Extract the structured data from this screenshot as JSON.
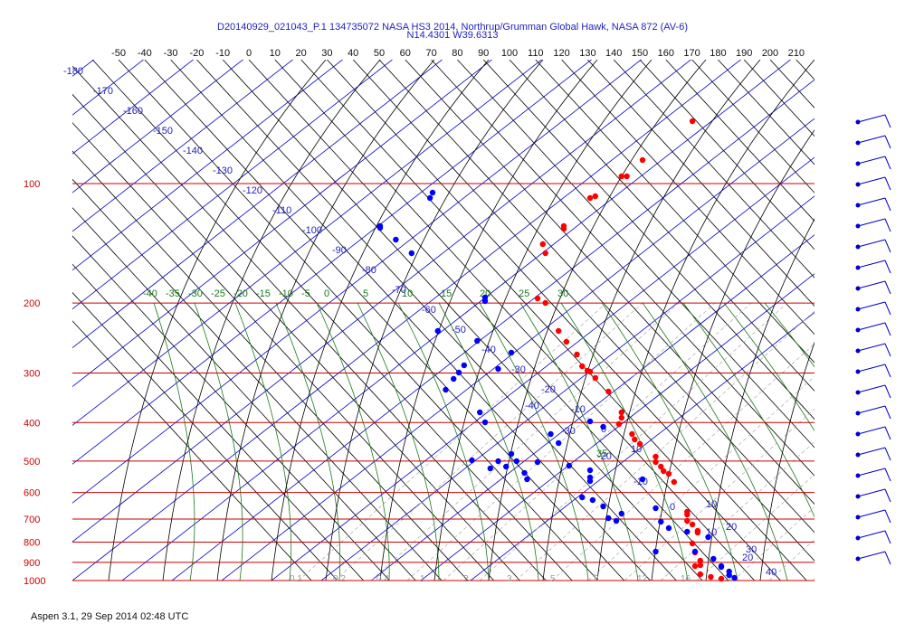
{
  "header": {
    "title_line1": "D20140929_021043_P.1 134735072 NASA HS3 2014, Northrup/Grumman Global Hawk, NASA 872 (AV-6)",
    "title_line2": "N14.4301 W39.6313"
  },
  "footer": {
    "text": "Aspen 3.1, 29 Sep 2014 02:48 UTC"
  },
  "colors": {
    "temperature": "#ff0000",
    "dewpoint": "#0000ff",
    "isobar": "#cc0000",
    "potential_temp": "#0000cc",
    "moist_adiabat": "#1a7a1a",
    "isotherm": "#000000",
    "mixing_ratio": "#aaaaaa",
    "wind_barb": "#0000cc"
  },
  "chart_data": {
    "type": "scatter",
    "title": "D20140929_021043_P.1 134735072 NASA HS3 2014, Northrup/Grumman Global Hawk, NASA 872 (AV-6)",
    "subtitle": "N14.4301 W39.6313",
    "pressure_ticks": [
      "100",
      "200",
      "300",
      "400",
      "500",
      "600",
      "700",
      "800",
      "900",
      "1000"
    ],
    "top_temperature_ticks": [
      "-50",
      "-40",
      "-30",
      "-20",
      "-10",
      "0",
      "10",
      "20",
      "30",
      "40",
      "50",
      "60",
      "70",
      "80",
      "90",
      "100",
      "110",
      "120",
      "130",
      "140",
      "150",
      "160",
      "170",
      "180",
      "190",
      "200",
      "210"
    ],
    "skewed_labels": [
      "-40",
      "-30",
      "-20",
      "-10",
      "0",
      "10",
      "20"
    ],
    "skewed_labels_lower": [
      "10",
      "20",
      "30",
      "40"
    ],
    "moist_adiabat_labels": [
      "-40",
      "-35",
      "-30",
      "-25",
      "-20",
      "-15",
      "-10",
      "-5",
      "0",
      "5",
      "10",
      "15",
      "20",
      "25",
      "30",
      "35"
    ],
    "potential_temp_labels": [
      "-180",
      "-170",
      "-160",
      "-150",
      "-140",
      "-130",
      "-120",
      "-110",
      "-100",
      "-90",
      "-80",
      "-70",
      "-60",
      "-50",
      "-40",
      "-30",
      "-20",
      "-10",
      "0",
      "10"
    ],
    "mixing_ratio_labels": [
      "0.1",
      "0.2",
      "0.4",
      "1",
      "2",
      "3",
      "5",
      "8",
      "12",
      "16",
      "20"
    ],
    "grid": true,
    "series": [
      {
        "name": "Temperature",
        "points": [
          [
            169,
            134
          ],
          [
            150,
            177
          ],
          [
            142,
            195
          ],
          [
            144,
            195
          ],
          [
            130,
            219
          ],
          [
            132,
            217
          ],
          [
            120,
            250
          ],
          [
            120,
            253
          ],
          [
            112,
            270
          ],
          [
            113,
            280
          ],
          [
            110,
            330
          ],
          [
            113,
            335
          ],
          [
            118,
            366
          ],
          [
            121,
            378
          ],
          [
            125,
            392
          ],
          [
            127,
            405
          ],
          [
            129,
            410
          ],
          [
            130,
            411
          ],
          [
            132,
            418
          ],
          [
            137,
            433
          ],
          [
            142,
            456
          ],
          [
            142,
            462
          ],
          [
            141,
            469
          ],
          [
            146,
            480
          ],
          [
            147,
            486
          ],
          [
            149,
            491
          ],
          [
            155,
            505
          ],
          [
            155,
            511
          ],
          [
            157,
            516
          ],
          [
            158,
            521
          ],
          [
            160,
            524
          ],
          [
            162,
            533
          ],
          [
            167,
            566
          ],
          [
            167,
            569
          ],
          [
            167,
            576
          ],
          [
            169,
            580
          ],
          [
            171,
            587
          ],
          [
            171,
            589
          ],
          [
            169,
            601
          ],
          [
            170,
            611
          ],
          [
            172,
            620
          ],
          [
            172,
            625
          ],
          [
            170,
            626
          ],
          [
            172,
            635
          ],
          [
            176,
            638
          ],
          [
            180,
            640
          ]
        ]
      },
      {
        "name": "Dewpoint",
        "points": [
          [
            69,
            219
          ],
          [
            70,
            213
          ],
          [
            50,
            250
          ],
          [
            50,
            252
          ],
          [
            56,
            265
          ],
          [
            62,
            280
          ],
          [
            90,
            329
          ],
          [
            90,
            333
          ],
          [
            72,
            366
          ],
          [
            87,
            377
          ],
          [
            100,
            390
          ],
          [
            82,
            404
          ],
          [
            80,
            412
          ],
          [
            95,
            408
          ],
          [
            78,
            419
          ],
          [
            75,
            431
          ],
          [
            88,
            456
          ],
          [
            90,
            467
          ],
          [
            130,
            466
          ],
          [
            135,
            472
          ],
          [
            115,
            480
          ],
          [
            118,
            490
          ],
          [
            100,
            502
          ],
          [
            102,
            510
          ],
          [
            110,
            511
          ],
          [
            85,
            509
          ],
          [
            95,
            510
          ],
          [
            92,
            518
          ],
          [
            98,
            516
          ],
          [
            105,
            523
          ],
          [
            106,
            530
          ],
          [
            122,
            515
          ],
          [
            130,
            520
          ],
          [
            130,
            528
          ],
          [
            130,
            532
          ],
          [
            150,
            530
          ],
          [
            127,
            550
          ],
          [
            131,
            553
          ],
          [
            155,
            562
          ],
          [
            135,
            560
          ],
          [
            142,
            568
          ],
          [
            137,
            573
          ],
          [
            140,
            576
          ],
          [
            157,
            577
          ],
          [
            160,
            584
          ],
          [
            167,
            588
          ],
          [
            175,
            594
          ],
          [
            155,
            610
          ],
          [
            170,
            610
          ],
          [
            177,
            618
          ],
          [
            180,
            626
          ],
          [
            180,
            627
          ],
          [
            183,
            632
          ],
          [
            183,
            636
          ],
          [
            185,
            639
          ]
        ]
      }
    ],
    "wind_barbs_count": 22
  }
}
